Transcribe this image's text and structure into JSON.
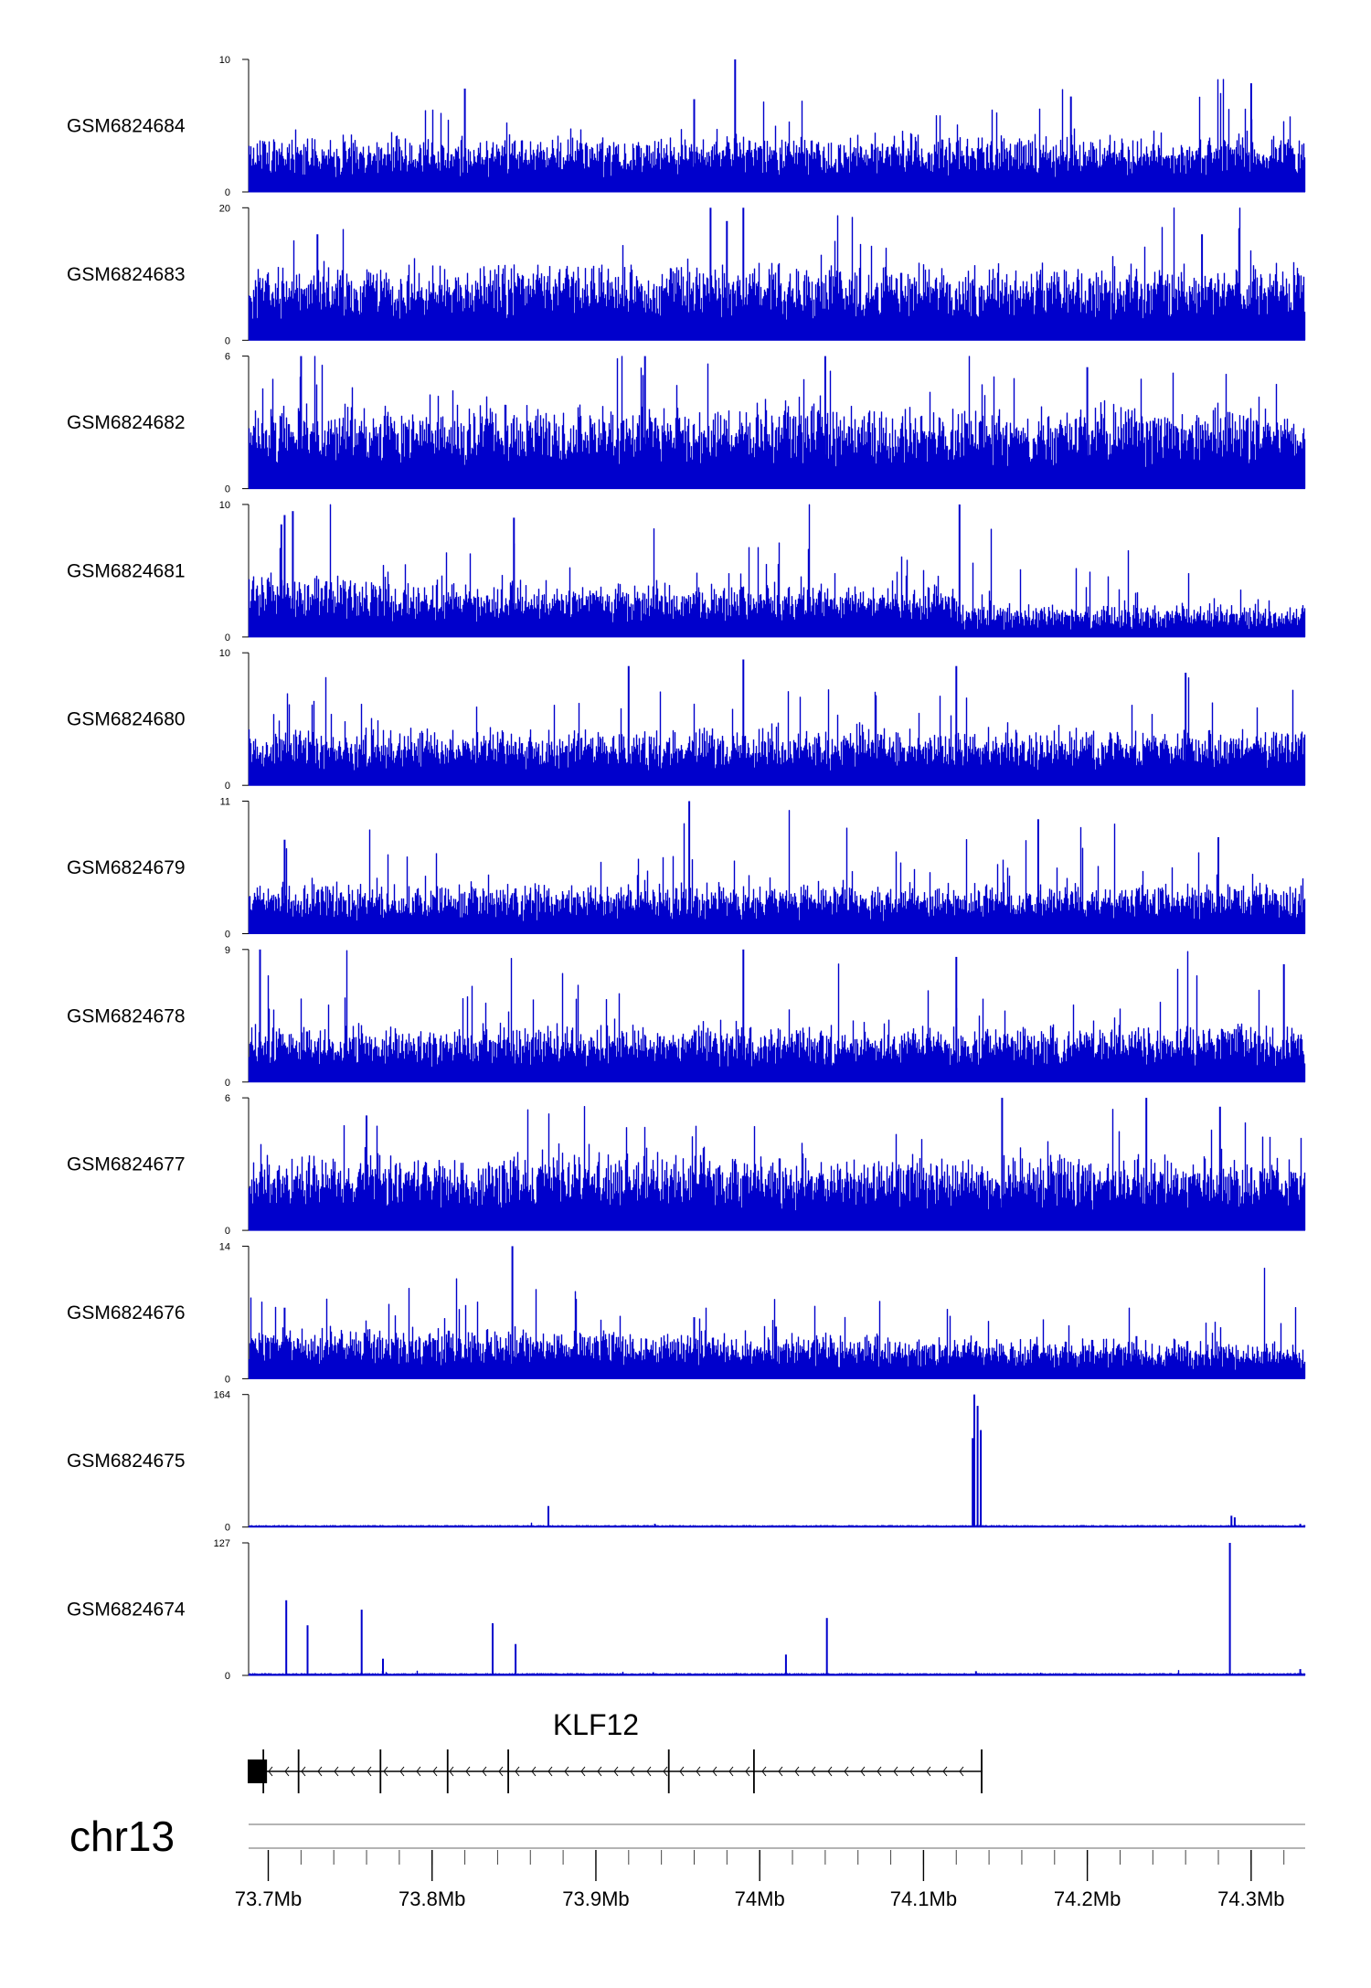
{
  "chart_data": {
    "type": "genome-tracks",
    "chromosome": "chr13",
    "xlim_mb": [
      73.688,
      74.333
    ],
    "x_ticks": [
      {
        "value": 73.7,
        "label": "73.7Mb"
      },
      {
        "value": 73.8,
        "label": "73.8Mb"
      },
      {
        "value": 73.9,
        "label": "73.9Mb"
      },
      {
        "value": 74.0,
        "label": "74Mb"
      },
      {
        "value": 74.1,
        "label": "74.1Mb"
      },
      {
        "value": 74.2,
        "label": "74.2Mb"
      },
      {
        "value": 74.3,
        "label": "74.3Mb"
      }
    ],
    "minor_tick_step_mb": 0.02,
    "color": "#0000CC",
    "tracks": [
      {
        "name": "GSM6824684",
        "ymin": 0,
        "ymax": 10,
        "profile": "uniform",
        "base": 0.3,
        "noise": 0.15,
        "spikes": [
          [
            73.985,
            10
          ],
          [
            74.19,
            7.2
          ],
          [
            74.3,
            8.2
          ],
          [
            73.82,
            7.8
          ],
          [
            73.96,
            7.0
          ]
        ]
      },
      {
        "name": "GSM6824683",
        "ymin": 0,
        "ymax": 20,
        "profile": "uniform",
        "base": 0.4,
        "noise": 0.2,
        "spikes": [
          [
            73.97,
            20
          ],
          [
            73.98,
            18
          ],
          [
            73.99,
            20
          ],
          [
            73.73,
            16
          ],
          [
            74.27,
            16
          ]
        ]
      },
      {
        "name": "GSM6824682",
        "ymin": 0,
        "ymax": 6,
        "profile": "uniform",
        "base": 0.45,
        "noise": 0.2,
        "spikes": [
          [
            73.72,
            6
          ],
          [
            73.93,
            6
          ],
          [
            74.04,
            6
          ],
          [
            74.2,
            5.5
          ]
        ]
      },
      {
        "name": "GSM6824681",
        "ymin": 0,
        "ymax": 10,
        "profile": "step",
        "base": 0.28,
        "noise": 0.15,
        "step_mb": 74.12,
        "after_factor": 0.4,
        "spikes": [
          [
            73.708,
            8.5
          ],
          [
            73.715,
            9.5
          ],
          [
            73.71,
            9.2
          ],
          [
            73.85,
            9.0
          ],
          [
            74.122,
            10
          ]
        ]
      },
      {
        "name": "GSM6824680",
        "ymin": 0,
        "ymax": 10,
        "profile": "uniform",
        "base": 0.3,
        "noise": 0.15,
        "spikes": [
          [
            73.92,
            9.0
          ],
          [
            74.12,
            9.0
          ],
          [
            74.26,
            8.5
          ],
          [
            73.99,
            9.5
          ]
        ]
      },
      {
        "name": "GSM6824679",
        "ymin": 0,
        "ymax": 11,
        "profile": "uniform",
        "base": 0.25,
        "noise": 0.15,
        "spikes": [
          [
            73.957,
            11
          ],
          [
            74.17,
            9.5
          ],
          [
            73.71,
            7.8
          ],
          [
            74.28,
            8.0
          ]
        ]
      },
      {
        "name": "GSM6824678",
        "ymin": 0,
        "ymax": 9,
        "profile": "uniform",
        "base": 0.3,
        "noise": 0.15,
        "spikes": [
          [
            73.695,
            9
          ],
          [
            73.99,
            9
          ],
          [
            74.12,
            8.5
          ],
          [
            74.32,
            8.0
          ]
        ]
      },
      {
        "name": "GSM6824677",
        "ymin": 0,
        "ymax": 6,
        "profile": "uniform",
        "base": 0.42,
        "noise": 0.18,
        "spikes": [
          [
            74.148,
            6
          ],
          [
            74.236,
            6
          ],
          [
            74.281,
            5.6
          ],
          [
            73.76,
            5.2
          ]
        ]
      },
      {
        "name": "GSM6824676",
        "ymin": 0,
        "ymax": 14,
        "profile": "decay",
        "base": 0.22,
        "noise": 0.12,
        "spikes": [
          [
            73.849,
            14
          ],
          [
            73.71,
            7.5
          ],
          [
            73.96,
            6.5
          ],
          [
            74.01,
            5.5
          ],
          [
            74.23,
            4.5
          ]
        ]
      },
      {
        "name": "GSM6824675",
        "ymin": 0,
        "ymax": 164,
        "profile": "sparse",
        "base": 0.008,
        "noise": 0.006,
        "spikes": [
          [
            74.131,
            164
          ],
          [
            74.133,
            150
          ],
          [
            74.13,
            110
          ],
          [
            74.135,
            120
          ],
          [
            73.871,
            26
          ],
          [
            74.288,
            14
          ],
          [
            74.29,
            12
          ],
          [
            73.936,
            4
          ],
          [
            74.33,
            4
          ]
        ]
      },
      {
        "name": "GSM6824674",
        "ymin": 0,
        "ymax": 127,
        "profile": "sparse",
        "base": 0.01,
        "noise": 0.006,
        "spikes": [
          [
            73.711,
            72
          ],
          [
            73.724,
            48
          ],
          [
            73.757,
            63
          ],
          [
            73.77,
            16
          ],
          [
            73.837,
            50
          ],
          [
            73.851,
            30
          ],
          [
            74.016,
            20
          ],
          [
            74.041,
            55
          ],
          [
            74.287,
            127
          ],
          [
            73.935,
            3
          ],
          [
            74.132,
            4
          ],
          [
            74.33,
            6
          ]
        ]
      }
    ],
    "gene": {
      "name": "KLF12",
      "strand": "-",
      "start_mb": 73.688,
      "end_mb": 74.136,
      "exons": [
        [
          73.688,
          73.697
        ],
        [
          73.696,
          73.698
        ],
        [
          73.718,
          73.719
        ],
        [
          73.768,
          73.769
        ],
        [
          73.809,
          73.81
        ],
        [
          73.846,
          73.847
        ],
        [
          73.944,
          73.945
        ],
        [
          73.996,
          73.997
        ],
        [
          74.135,
          74.136
        ]
      ]
    }
  }
}
